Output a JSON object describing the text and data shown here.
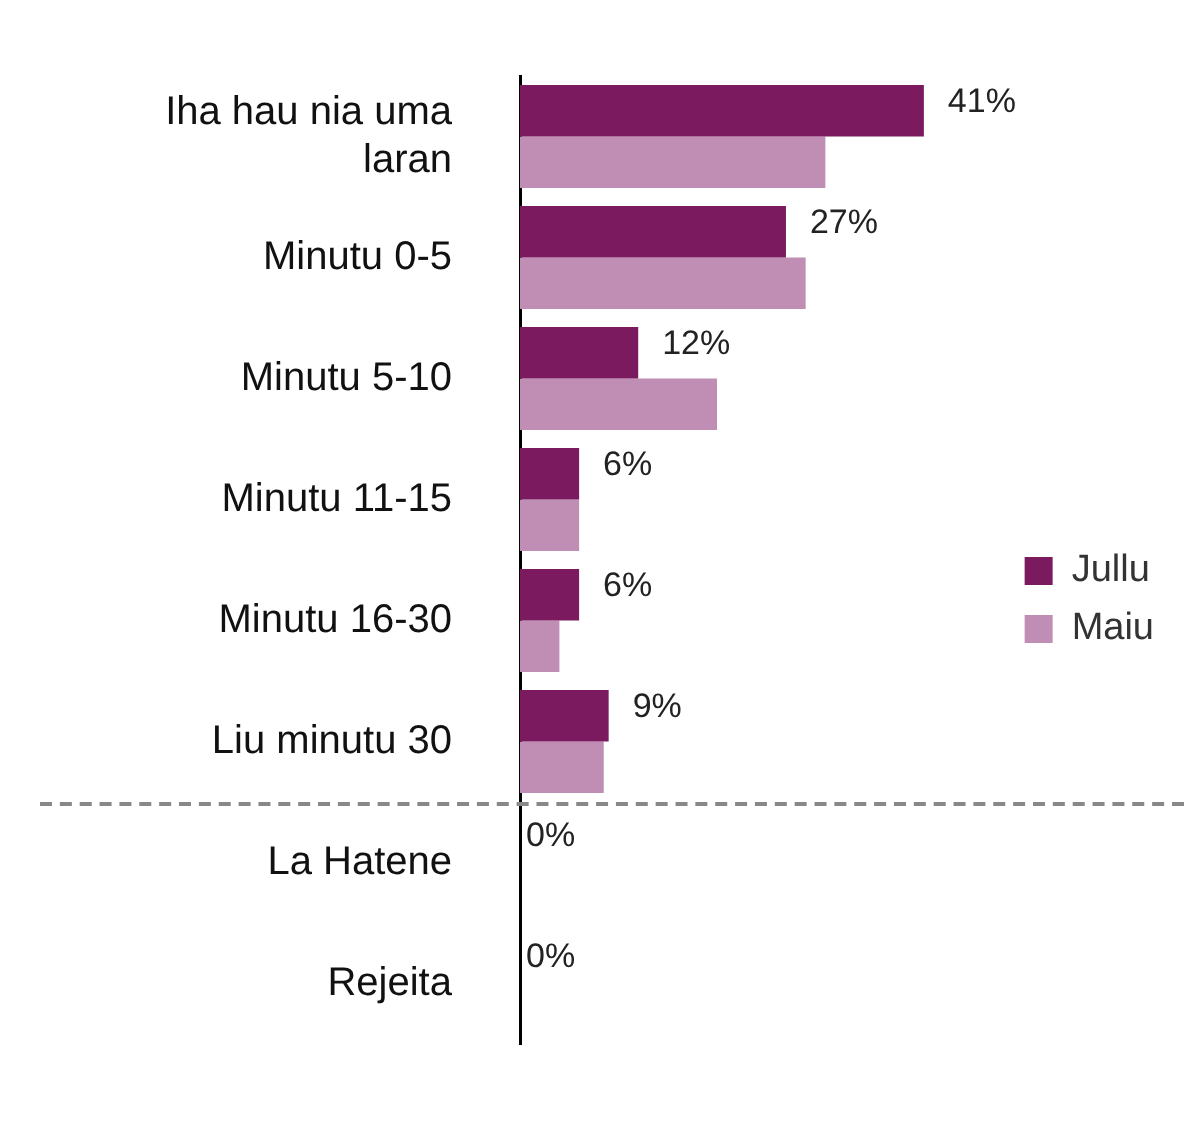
{
  "chart_data": {
    "type": "bar",
    "orientation": "horizontal",
    "categories": [
      "Iha hau nia uma laran",
      "Minutu 0-5",
      "Minutu 5-10",
      "Minutu 11-15",
      "Minutu 16-30",
      "Liu minutu 30",
      "La Hatene",
      "Rejeita"
    ],
    "series": [
      {
        "name": "Jullu",
        "color": "#7b1a5e",
        "values": [
          41,
          27,
          12,
          6,
          6,
          9,
          0,
          0
        ],
        "value_labels": [
          "41%",
          "27%",
          "12%",
          "6%",
          "6%",
          "9%",
          "0%",
          "0%"
        ]
      },
      {
        "name": "Maiu",
        "color": "#c08db5",
        "values": [
          31,
          29,
          20,
          6,
          4,
          8.5,
          0,
          0
        ]
      }
    ],
    "legend": "right"
  }
}
